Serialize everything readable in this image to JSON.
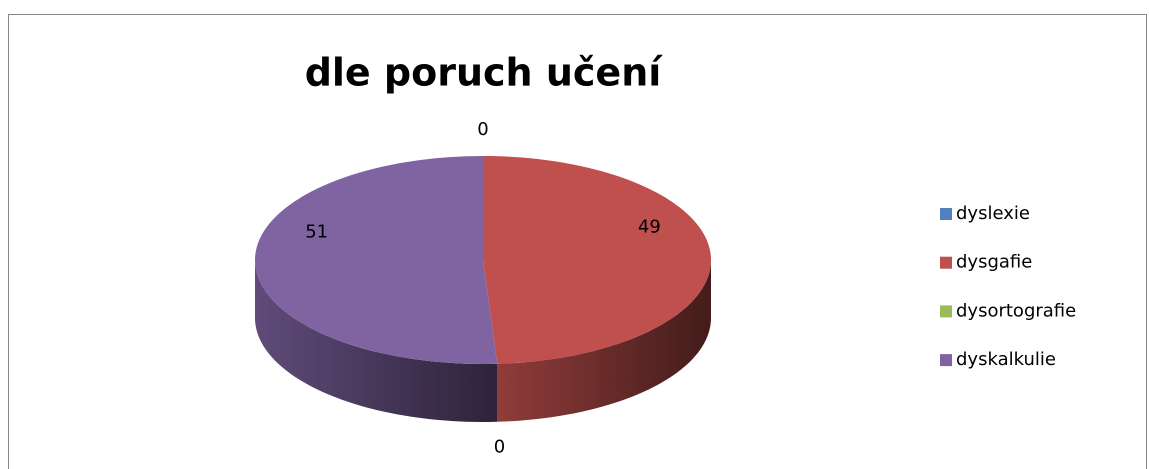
{
  "chart_data": {
    "type": "pie",
    "title": "dle poruch učení",
    "categories": [
      "dyslexie",
      "dysgafie",
      "dysortografie",
      "dyskalkulie"
    ],
    "values": [
      0,
      49,
      0,
      51
    ],
    "colors": [
      "#4f81bd",
      "#c0504d",
      "#9bbb59",
      "#8064a2"
    ],
    "legend": "right"
  }
}
